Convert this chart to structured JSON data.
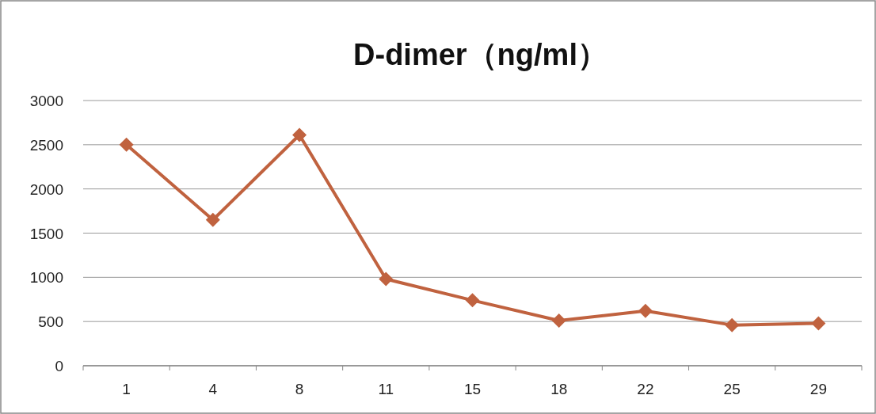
{
  "chart_data": {
    "type": "line",
    "title": "D-dimer（ng/ml）",
    "categories": [
      "1",
      "4",
      "8",
      "11",
      "15",
      "18",
      "22",
      "25",
      "29"
    ],
    "series": [
      {
        "color": "#c0623f",
        "values": [
          2500,
          1650,
          2610,
          980,
          740,
          510,
          620,
          460,
          480
        ]
      }
    ],
    "ylim": [
      0,
      3000
    ],
    "yticks": [
      0,
      500,
      1000,
      1500,
      2000,
      2500,
      3000
    ],
    "grid": "y",
    "marker": "diamond"
  }
}
